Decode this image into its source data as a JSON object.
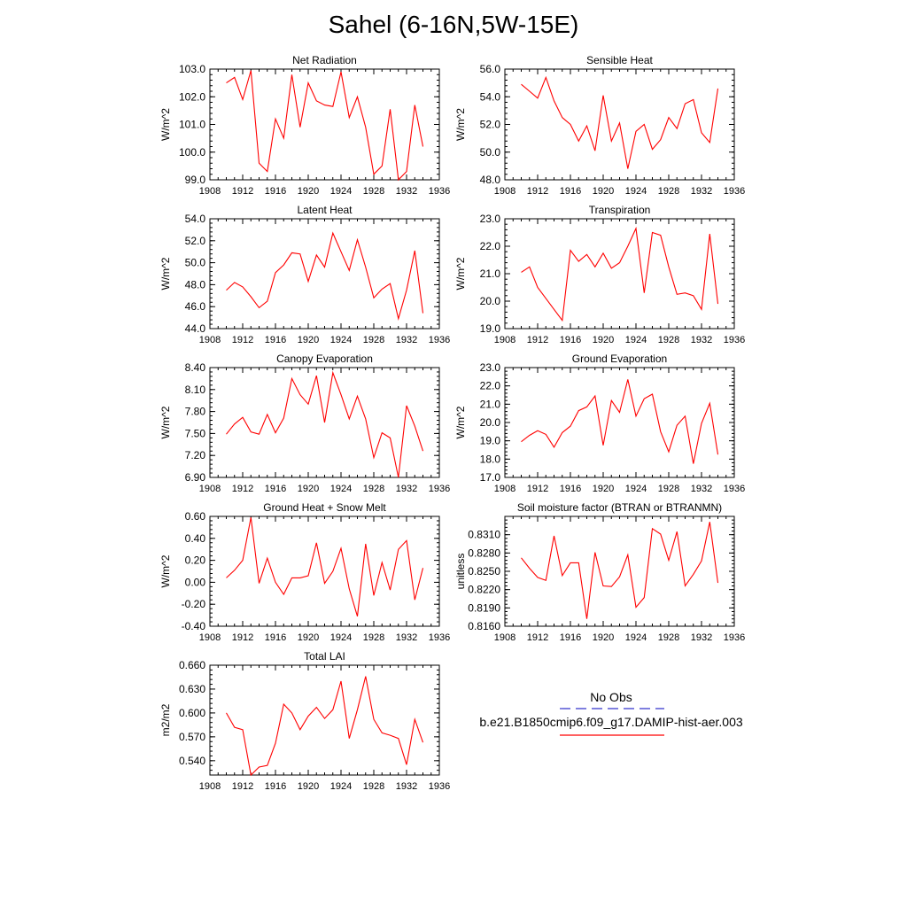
{
  "title": "Sahel (6-16N,5W-15E)",
  "legend": {
    "obs_label": "No Obs",
    "obs_color": "#3333cc",
    "model_label": "b.e21.B1850cmip6.f09_g17.DAMIP-hist-aer.003",
    "model_color": "#ff0000"
  },
  "chart_data": [
    {
      "type": "line",
      "title": "Net Radiation",
      "ylabel": "W/m^2",
      "xlim": [
        1908,
        1936
      ],
      "ylim": [
        99.0,
        103.0
      ],
      "xticks": [
        "1908",
        "1912",
        "1916",
        "1920",
        "1924",
        "1928",
        "1932",
        "1936"
      ],
      "yticks": [
        "99.0",
        "100.0",
        "101.0",
        "102.0",
        "103.0"
      ],
      "x": [
        1910,
        1911,
        1912,
        1913,
        1914,
        1915,
        1916,
        1917,
        1918,
        1919,
        1920,
        1921,
        1922,
        1923,
        1924,
        1925,
        1926,
        1927,
        1928,
        1929,
        1930,
        1931,
        1932,
        1933,
        1934
      ],
      "series": [
        {
          "values": [
            102.5,
            102.7,
            101.9,
            102.95,
            99.6,
            99.3,
            101.2,
            100.5,
            102.8,
            100.9,
            102.5,
            101.85,
            101.7,
            101.65,
            102.9,
            101.25,
            102.0,
            100.9,
            99.2,
            99.5,
            101.55,
            99.0,
            99.3,
            101.7,
            100.2
          ]
        }
      ]
    },
    {
      "type": "line",
      "title": "Sensible Heat",
      "ylabel": "W/m^2",
      "xlim": [
        1908,
        1936
      ],
      "ylim": [
        48.0,
        56.0
      ],
      "xticks": [
        "1908",
        "1912",
        "1916",
        "1920",
        "1924",
        "1928",
        "1932",
        "1936"
      ],
      "yticks": [
        "48.0",
        "50.0",
        "52.0",
        "54.0",
        "56.0"
      ],
      "x": [
        1910,
        1911,
        1912,
        1913,
        1914,
        1915,
        1916,
        1917,
        1918,
        1919,
        1920,
        1921,
        1922,
        1923,
        1924,
        1925,
        1926,
        1927,
        1928,
        1929,
        1930,
        1931,
        1932,
        1933,
        1934
      ],
      "series": [
        {
          "values": [
            54.9,
            54.4,
            53.9,
            55.4,
            53.7,
            52.5,
            52.0,
            50.8,
            51.9,
            50.1,
            54.1,
            50.8,
            52.1,
            48.8,
            51.5,
            52.0,
            50.2,
            50.9,
            52.5,
            51.7,
            53.5,
            53.8,
            51.4,
            50.7,
            54.6
          ]
        }
      ]
    },
    {
      "type": "line",
      "title": "Latent Heat",
      "ylabel": "W/m^2",
      "xlim": [
        1908,
        1936
      ],
      "ylim": [
        44.0,
        54.0
      ],
      "xticks": [
        "1908",
        "1912",
        "1916",
        "1920",
        "1924",
        "1928",
        "1932",
        "1936"
      ],
      "yticks": [
        "44.0",
        "46.0",
        "48.0",
        "50.0",
        "52.0",
        "54.0"
      ],
      "x": [
        1910,
        1911,
        1912,
        1913,
        1914,
        1915,
        1916,
        1917,
        1918,
        1919,
        1920,
        1921,
        1922,
        1923,
        1924,
        1925,
        1926,
        1927,
        1928,
        1929,
        1930,
        1931,
        1932,
        1933,
        1934
      ],
      "series": [
        {
          "values": [
            47.5,
            48.2,
            47.8,
            46.9,
            45.9,
            46.5,
            49.1,
            49.8,
            50.9,
            50.8,
            48.3,
            50.7,
            49.6,
            52.7,
            51.0,
            49.3,
            52.1,
            49.6,
            46.8,
            47.6,
            48.1,
            44.9,
            47.5,
            51.1,
            45.4
          ]
        }
      ]
    },
    {
      "type": "line",
      "title": "Transpiration",
      "ylabel": "W/m^2",
      "xlim": [
        1908,
        1936
      ],
      "ylim": [
        19.0,
        23.0
      ],
      "xticks": [
        "1908",
        "1912",
        "1916",
        "1920",
        "1924",
        "1928",
        "1932",
        "1936"
      ],
      "yticks": [
        "19.0",
        "20.0",
        "21.0",
        "22.0",
        "23.0"
      ],
      "x": [
        1910,
        1911,
        1912,
        1913,
        1914,
        1915,
        1916,
        1917,
        1918,
        1919,
        1920,
        1921,
        1922,
        1923,
        1924,
        1925,
        1926,
        1927,
        1928,
        1929,
        1930,
        1931,
        1932,
        1933,
        1934
      ],
      "series": [
        {
          "values": [
            21.05,
            21.25,
            20.5,
            20.1,
            19.7,
            19.3,
            21.85,
            21.45,
            21.7,
            21.25,
            21.75,
            21.2,
            21.4,
            22.0,
            22.65,
            20.3,
            22.5,
            22.4,
            21.25,
            20.25,
            20.3,
            20.2,
            19.7,
            22.45,
            19.9
          ]
        }
      ]
    },
    {
      "type": "line",
      "title": "Canopy Evaporation",
      "ylabel": "W/m^2",
      "xlim": [
        1908,
        1936
      ],
      "ylim": [
        6.9,
        8.4
      ],
      "xticks": [
        "1908",
        "1912",
        "1916",
        "1920",
        "1924",
        "1928",
        "1932",
        "1936"
      ],
      "yticks": [
        "6.90",
        "7.20",
        "7.50",
        "7.80",
        "8.10",
        "8.40"
      ],
      "x": [
        1910,
        1911,
        1912,
        1913,
        1914,
        1915,
        1916,
        1917,
        1918,
        1919,
        1920,
        1921,
        1922,
        1923,
        1924,
        1925,
        1926,
        1927,
        1928,
        1929,
        1930,
        1931,
        1932,
        1933,
        1934
      ],
      "series": [
        {
          "values": [
            7.49,
            7.63,
            7.72,
            7.52,
            7.49,
            7.76,
            7.51,
            7.71,
            8.25,
            8.03,
            7.9,
            8.29,
            7.65,
            8.33,
            8.03,
            7.7,
            8.01,
            7.7,
            7.17,
            7.51,
            7.44,
            6.9,
            7.88,
            7.6,
            7.26
          ]
        }
      ]
    },
    {
      "type": "line",
      "title": "Ground Evaporation",
      "ylabel": "W/m^2",
      "xlim": [
        1908,
        1936
      ],
      "ylim": [
        17.0,
        23.0
      ],
      "xticks": [
        "1908",
        "1912",
        "1916",
        "1920",
        "1924",
        "1928",
        "1932",
        "1936"
      ],
      "yticks": [
        "17.0",
        "18.0",
        "19.0",
        "20.0",
        "21.0",
        "22.0",
        "23.0"
      ],
      "x": [
        1910,
        1911,
        1912,
        1913,
        1914,
        1915,
        1916,
        1917,
        1918,
        1919,
        1920,
        1921,
        1922,
        1923,
        1924,
        1925,
        1926,
        1927,
        1928,
        1929,
        1930,
        1931,
        1932,
        1933,
        1934
      ],
      "series": [
        {
          "values": [
            18.95,
            19.3,
            19.55,
            19.35,
            18.65,
            19.45,
            19.8,
            20.65,
            20.85,
            21.45,
            18.75,
            21.2,
            20.55,
            22.35,
            20.35,
            21.3,
            21.55,
            19.5,
            18.4,
            19.85,
            20.35,
            17.75,
            19.95,
            21.05,
            18.25
          ]
        }
      ]
    },
    {
      "type": "line",
      "title": "Ground Heat + Snow Melt",
      "ylabel": "W/m^2",
      "xlim": [
        1908,
        1936
      ],
      "ylim": [
        -0.4,
        0.6
      ],
      "xticks": [
        "1908",
        "1912",
        "1916",
        "1920",
        "1924",
        "1928",
        "1932",
        "1936"
      ],
      "yticks": [
        "-0.40",
        "-0.20",
        "0.00",
        "0.20",
        "0.40",
        "0.60"
      ],
      "x": [
        1910,
        1911,
        1912,
        1913,
        1914,
        1915,
        1916,
        1917,
        1918,
        1919,
        1920,
        1921,
        1922,
        1923,
        1924,
        1925,
        1926,
        1927,
        1928,
        1929,
        1930,
        1931,
        1932,
        1933,
        1934
      ],
      "series": [
        {
          "values": [
            0.04,
            0.11,
            0.2,
            0.59,
            -0.01,
            0.22,
            0.0,
            -0.11,
            0.04,
            0.04,
            0.06,
            0.36,
            -0.01,
            0.1,
            0.31,
            -0.06,
            -0.31,
            0.35,
            -0.12,
            0.18,
            -0.07,
            0.3,
            0.38,
            -0.16,
            0.13
          ]
        }
      ]
    },
    {
      "type": "line",
      "title": "Soil moisture factor (BTRAN or BTRANMN)",
      "ylabel": "unitless",
      "xlim": [
        1908,
        1936
      ],
      "ylim": [
        0.816,
        0.834
      ],
      "xticks": [
        "1908",
        "1912",
        "1916",
        "1920",
        "1924",
        "1928",
        "1932",
        "1936"
      ],
      "yticks": [
        "0.8160",
        "0.8190",
        "0.8220",
        "0.8250",
        "0.8280",
        "0.8310"
      ],
      "x": [
        1910,
        1911,
        1912,
        1913,
        1914,
        1915,
        1916,
        1917,
        1918,
        1919,
        1920,
        1921,
        1922,
        1923,
        1924,
        1925,
        1926,
        1927,
        1928,
        1929,
        1930,
        1931,
        1932,
        1933,
        1934
      ],
      "series": [
        {
          "values": [
            0.8272,
            0.8255,
            0.824,
            0.8235,
            0.8308,
            0.8243,
            0.8264,
            0.8264,
            0.8172,
            0.8281,
            0.8226,
            0.8225,
            0.8241,
            0.8277,
            0.8191,
            0.8207,
            0.832,
            0.8311,
            0.8268,
            0.8315,
            0.8226,
            0.8245,
            0.8267,
            0.8331,
            0.8231
          ]
        }
      ]
    },
    {
      "type": "line",
      "title": "Total LAI",
      "ylabel": "m2/m2",
      "xlim": [
        1908,
        1936
      ],
      "ylim": [
        0.522,
        0.66
      ],
      "xticks": [
        "1908",
        "1912",
        "1916",
        "1920",
        "1924",
        "1928",
        "1932",
        "1936"
      ],
      "yticks": [
        "0.540",
        "0.570",
        "0.600",
        "0.630",
        "0.660"
      ],
      "x": [
        1910,
        1911,
        1912,
        1913,
        1914,
        1915,
        1916,
        1917,
        1918,
        1919,
        1920,
        1921,
        1922,
        1923,
        1924,
        1925,
        1926,
        1927,
        1928,
        1929,
        1930,
        1931,
        1932,
        1933,
        1934
      ],
      "series": [
        {
          "values": [
            0.6,
            0.582,
            0.579,
            0.522,
            0.532,
            0.534,
            0.562,
            0.611,
            0.6,
            0.579,
            0.596,
            0.607,
            0.593,
            0.604,
            0.64,
            0.568,
            0.604,
            0.646,
            0.592,
            0.575,
            0.572,
            0.568,
            0.535,
            0.592,
            0.563
          ]
        }
      ]
    }
  ]
}
